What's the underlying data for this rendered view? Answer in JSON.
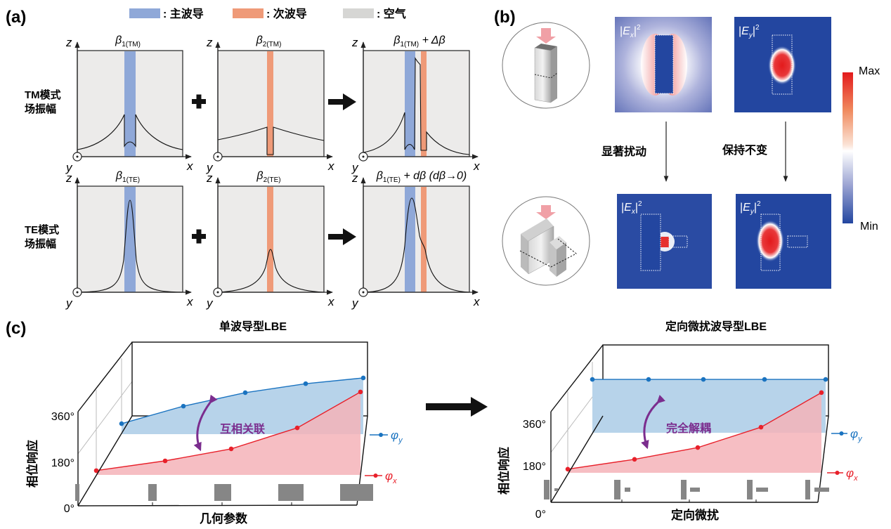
{
  "colors": {
    "main_waveguide": "#8fa8d8",
    "secondary_waveguide": "#ef9a78",
    "air": "#d6d6d4",
    "map_blue": "#2346a0",
    "phi_y": "#1a73c0",
    "phi_x": "#e8202a",
    "annotation": "#7b2d8e"
  },
  "panel_a": {
    "label": "(a)",
    "legend": [
      {
        "swatch": "main_waveguide",
        "text": ": 主波导"
      },
      {
        "swatch": "secondary_waveguide",
        "text": ": 次波导"
      },
      {
        "swatch": "air",
        "text": ": 空气"
      }
    ],
    "rows": [
      {
        "label_line1": "TM模式",
        "label_line2": "场振幅",
        "titles": [
          {
            "beta": "β",
            "sub": "1(TM)",
            "rest": ""
          },
          {
            "beta": "β",
            "sub": "2(TM)",
            "rest": ""
          },
          {
            "beta": "β",
            "sub": "1(TM)",
            "rest": " + Δβ"
          }
        ]
      },
      {
        "label_line1": "TE模式",
        "label_line2": "场振幅",
        "titles": [
          {
            "beta": "β",
            "sub": "1(TE)",
            "rest": ""
          },
          {
            "beta": "β",
            "sub": "2(TE)",
            "rest": ""
          },
          {
            "beta": "β",
            "sub": "1(TE)",
            "rest": " + dβ (dβ→0)"
          }
        ]
      }
    ],
    "axis_z": "z",
    "axis_x": "x",
    "axis_y": "y",
    "plus_icon": "plus-icon",
    "arrow_icon": "right-arrow-icon"
  },
  "panel_b": {
    "label": "(b)",
    "maps": [
      {
        "field": "E",
        "sub": "x",
        "sup": "2"
      },
      {
        "field": "E",
        "sub": "y",
        "sup": "2"
      },
      {
        "field": "E",
        "sub": "x",
        "sup": "2"
      },
      {
        "field": "E",
        "sub": "y",
        "sup": "2"
      }
    ],
    "transition_left": "显著扰动",
    "transition_right": "保持不变",
    "colorbar": {
      "max": "Max",
      "min": "Min"
    }
  },
  "panel_c": {
    "label": "(c)",
    "charts": [
      {
        "title": "单波导型LBE",
        "xlabel": "几何参数",
        "ylabel": "相位响应",
        "yticks": [
          "360°",
          "180°",
          "0°"
        ],
        "annotation": "互相关联",
        "series": [
          {
            "name": "φ",
            "sub": "y",
            "values": [
              329,
              399,
              453,
              489,
              512
            ]
          },
          {
            "name": "φ",
            "sub": "x",
            "values": [
              141,
              180,
              228,
              312,
              456
            ]
          }
        ]
      },
      {
        "title": "定向微扰波导型LBE",
        "xlabel": "定向微扰",
        "ylabel": "相位响应",
        "yticks": [
          "360°",
          "180°",
          "0°"
        ],
        "annotation": "完全解耦",
        "series": [
          {
            "name": "φ",
            "sub": "y",
            "values": [
              512,
              512,
              512,
              512,
              512
            ]
          },
          {
            "name": "φ",
            "sub": "x",
            "values": [
              138,
              179,
              228,
              313,
              457
            ]
          }
        ]
      }
    ]
  }
}
